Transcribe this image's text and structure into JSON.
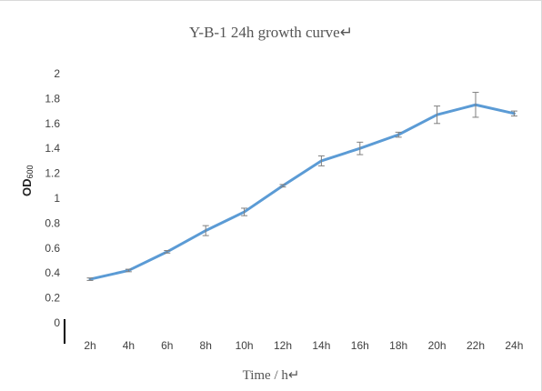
{
  "chart_data": {
    "type": "line",
    "title": "Y-B-1 24h growth curve↵",
    "xlabel": "Time / h↵",
    "ylabel": "OD",
    "ylabel_subscript": "600",
    "categories": [
      "2h",
      "4h",
      "6h",
      "8h",
      "10h",
      "12h",
      "14h",
      "16h",
      "18h",
      "20h",
      "22h",
      "24h"
    ],
    "series": [
      {
        "values": [
          0.35,
          0.42,
          0.57,
          0.74,
          0.89,
          1.1,
          1.3,
          1.4,
          1.51,
          1.67,
          1.75,
          1.68
        ],
        "error": [
          0.01,
          0.01,
          0.01,
          0.04,
          0.03,
          0.01,
          0.04,
          0.05,
          0.02,
          0.07,
          0.1,
          0.02
        ],
        "color": "#5b9bd5"
      }
    ],
    "ylim": [
      0,
      2
    ],
    "yticks": [
      0,
      0.2,
      0.4,
      0.6,
      0.8,
      1,
      1.2,
      1.4,
      1.6,
      1.8,
      2
    ],
    "ytick_labels": [
      "0",
      "0.2",
      "0.4",
      "0.6",
      "0.8",
      "1",
      "1.2",
      "1.4",
      "1.6",
      "1.8",
      "2"
    ],
    "grid": false,
    "legend": "none",
    "error_bar_color": "#7f7f7f"
  }
}
